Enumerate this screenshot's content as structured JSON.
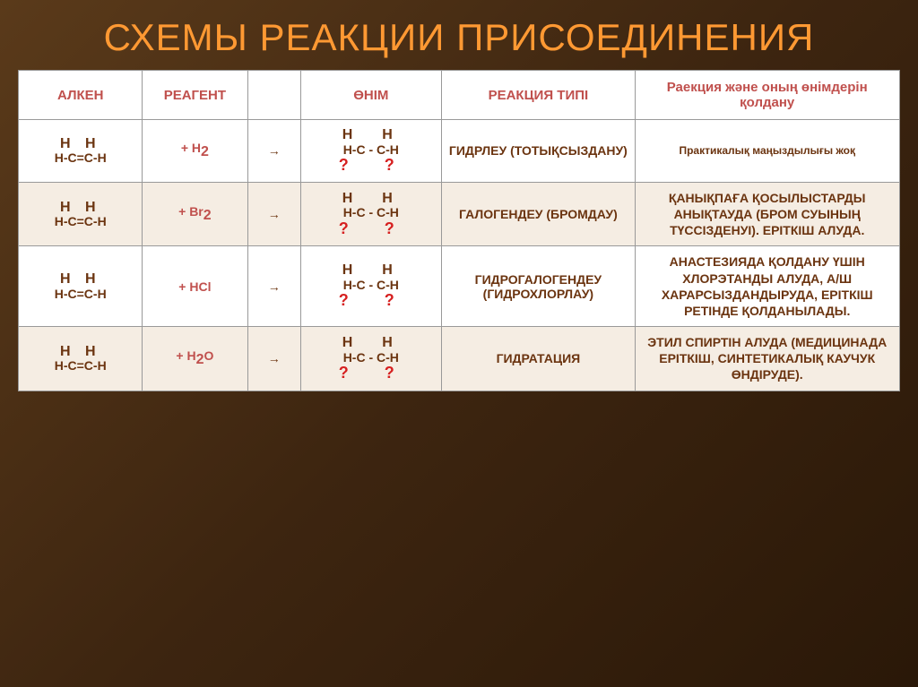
{
  "title": "СХЕМЫ РЕАКЦИИ ПРИСОЕДИНЕНИЯ",
  "headers": {
    "alkene": "АЛКЕН",
    "reagent": "РЕАГЕНТ",
    "arrow": "",
    "product": "ӨНІМ",
    "type": "РЕАКЦИЯ ТИПІ",
    "usage": "Раекция және оның өнімдерін қолдану"
  },
  "alkene_html": "<div class='top'>H&nbsp;H</div><div>H-C=C-H</div>",
  "product_html": "<div class='top'>H&nbsp;&nbsp;H</div><div>H-C - C-H</div><div class='q'>?&nbsp;&nbsp;?</div>",
  "rows": [
    {
      "reagent": "+ H",
      "reagent_sub": "2",
      "reagent_color": "#c0504d",
      "type": "ГИДРЛЕУ (ТОТЫҚСЫЗДАНУ)",
      "usage": "Практикалық маңыздылығы жоқ",
      "usage_center": true,
      "alt": false
    },
    {
      "reagent": "+ Br",
      "reagent_sub": "2",
      "reagent_color": "#c0504d",
      "type": "ГАЛОГЕНДЕУ (БРОМДАУ)",
      "usage": "ҚАНЫҚПАҒА ҚОСЫЛЫСТАРДЫ АНЫҚТАУДА (БРОМ СУЫНЫҢ ТҮССІЗДЕНУІ). ЕРІТКІШ АЛУДА.",
      "usage_center": false,
      "alt": true
    },
    {
      "reagent": "+ HCl",
      "reagent_sub": "",
      "reagent_color": "#c0504d",
      "type": "ГИДРОГАЛОГЕНДЕУ (ГИДРОХЛОРЛАУ)",
      "usage": "АНАСТЕЗИЯДА ҚОЛДАНУ ҮШІН ХЛОРЭТАНДЫ АЛУДА, А/Ш ХАРАРСЫЗДАНДЫРУДА, ЕРІТКІШ РЕТІНДЕ ҚОЛДАНЫЛАДЫ.",
      "usage_center": false,
      "alt": false
    },
    {
      "reagent": "+ H",
      "reagent_sub": "2",
      "reagent_tail": "O",
      "reagent_color": "#c0504d",
      "type": "ГИДРАТАЦИЯ",
      "usage": "ЭТИЛ СПИРТІН АЛУДА (МЕДИЦИНАДА ЕРІТКІШ, СИНТЕТИКАЛЫҚ КАУЧУК ӨНДІРУДЕ).",
      "usage_center": false,
      "alt": true
    }
  ],
  "colors": {
    "title": "#ff9933",
    "header_text": "#c0504d",
    "cell_text": "#6b3410",
    "question": "#d62020",
    "bg_gradient_start": "#5a3a1a",
    "bg_gradient_end": "#2a1808",
    "alt_row": "#f5ede3"
  }
}
